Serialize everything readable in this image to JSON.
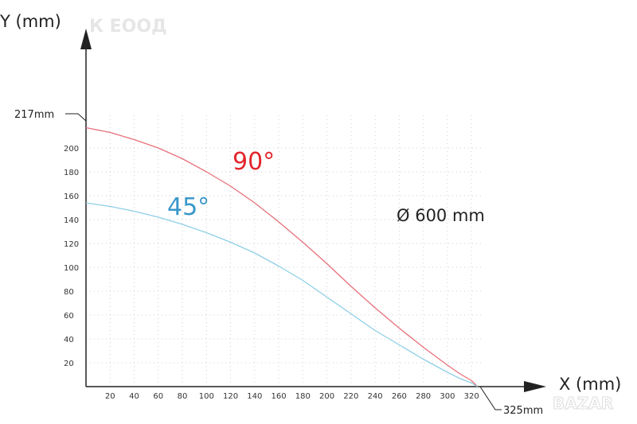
{
  "watermark": {
    "text": "К ЕООД"
  },
  "corner_badge": {
    "text": "BAZAR"
  },
  "chart_data": {
    "type": "line",
    "title": "",
    "xlabel": "X (mm)",
    "ylabel": "Y (mm)",
    "annotation": "Ø 600 mm",
    "xlim": [
      0,
      330
    ],
    "ylim": [
      0,
      235
    ],
    "x_ticks": [
      20,
      40,
      60,
      80,
      100,
      120,
      140,
      160,
      180,
      200,
      220,
      240,
      260,
      280,
      300,
      320
    ],
    "y_ticks": [
      20,
      40,
      60,
      80,
      100,
      120,
      140,
      160,
      180,
      200
    ],
    "callouts": {
      "y_max": "217mm",
      "x_max": "325mm"
    },
    "grid": true,
    "series": [
      {
        "name": "90°",
        "color": "#e8707a",
        "label_color": "#e3262c",
        "x": [
          0,
          20,
          40,
          60,
          80,
          100,
          120,
          140,
          160,
          180,
          200,
          220,
          240,
          260,
          280,
          300,
          310,
          320,
          325
        ],
        "y": [
          217,
          213,
          207,
          200,
          191,
          180,
          168,
          154,
          138,
          121,
          103,
          84,
          66,
          49,
          33,
          18,
          11,
          5,
          0
        ]
      },
      {
        "name": "45°",
        "color": "#8ecfe6",
        "label_color": "#3a97c9",
        "x": [
          0,
          20,
          40,
          60,
          80,
          100,
          120,
          140,
          160,
          180,
          200,
          220,
          240,
          260,
          280,
          300,
          310,
          320,
          325
        ],
        "y": [
          154,
          151,
          147,
          142,
          136,
          129,
          121,
          112,
          101,
          89,
          75,
          61,
          47,
          35,
          23,
          12,
          7,
          3,
          0
        ]
      }
    ]
  }
}
